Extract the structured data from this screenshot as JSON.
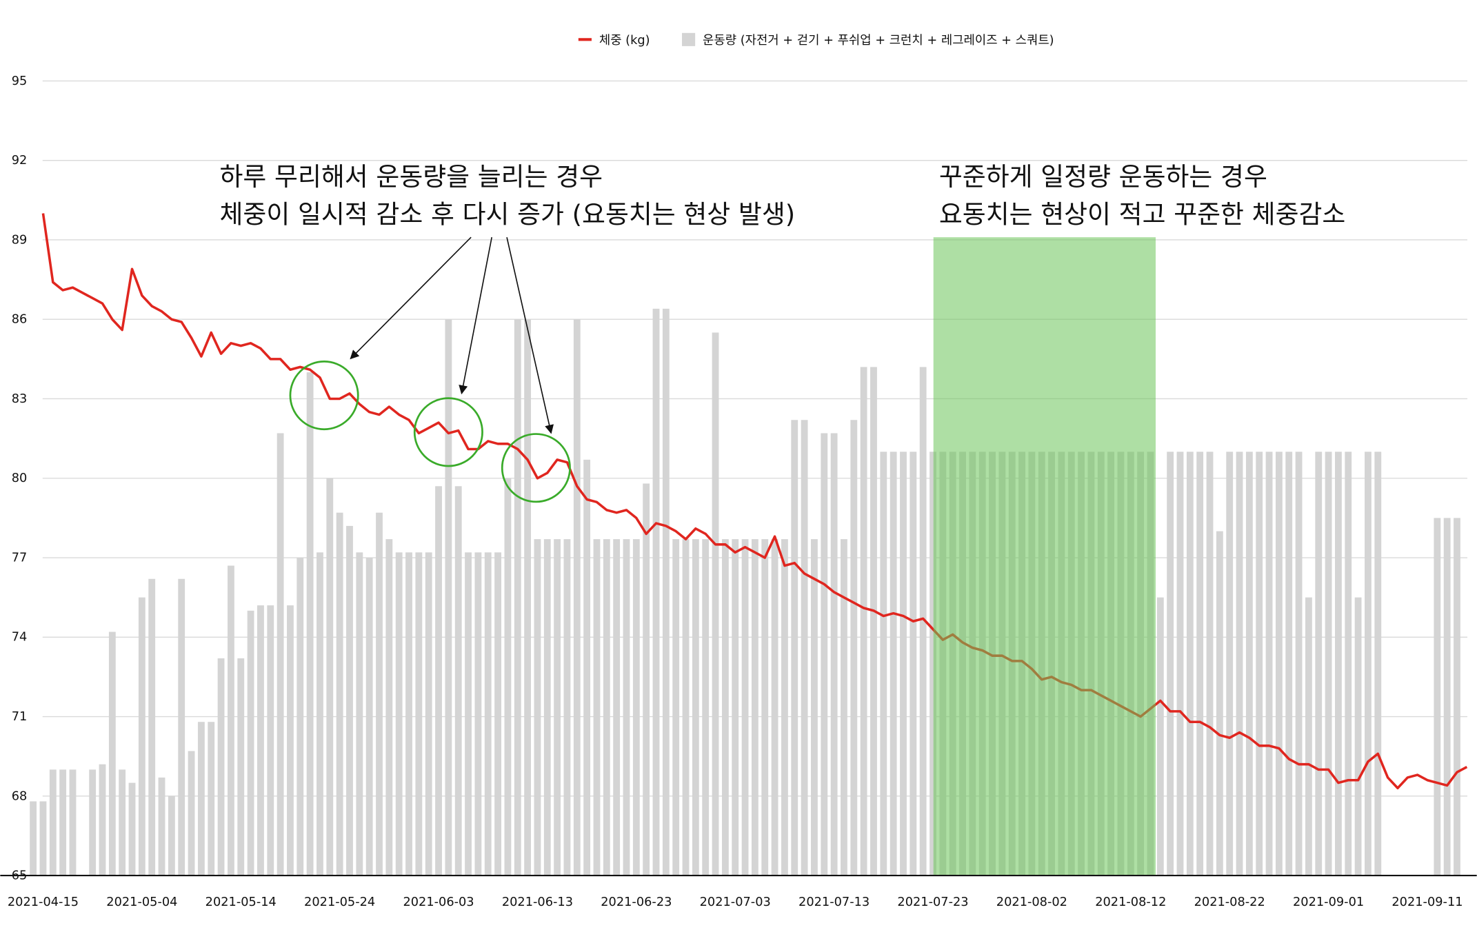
{
  "chart_data": {
    "type": "combo",
    "annotations": [
      [
        "하루 무리해서 운동량을 늘리는 경우",
        "체중이 일시적 감소 후 다시 증가 (요동치는 현상 발생)"
      ],
      [
        "꾸준하게 일정량 운동하는 경우",
        "요동치는 현상이 적고 꾸준한 체중감소"
      ]
    ],
    "categories": [
      null,
      "2021-04-15",
      null,
      null,
      null,
      null,
      null,
      null,
      null,
      null,
      null,
      "2021-05-04",
      null,
      null,
      null,
      null,
      null,
      null,
      null,
      null,
      null,
      "2021-05-14",
      null,
      null,
      null,
      null,
      null,
      null,
      null,
      null,
      null,
      "2021-05-24",
      null,
      null,
      null,
      null,
      null,
      null,
      null,
      null,
      null,
      "2021-06-03",
      null,
      null,
      null,
      null,
      null,
      null,
      null,
      null,
      null,
      "2021-06-13",
      null,
      null,
      null,
      null,
      null,
      null,
      null,
      null,
      null,
      "2021-06-23",
      null,
      null,
      null,
      null,
      null,
      null,
      null,
      null,
      null,
      "2021-07-03",
      null,
      null,
      null,
      null,
      null,
      null,
      null,
      null,
      null,
      "2021-07-13",
      null,
      null,
      null,
      null,
      null,
      null,
      null,
      null,
      null,
      "2021-07-23",
      null,
      null,
      null,
      null,
      null,
      null,
      null,
      null,
      null,
      "2021-08-02",
      null,
      null,
      null,
      null,
      null,
      null,
      null,
      null,
      null,
      "2021-08-12",
      null,
      null,
      null,
      null,
      null,
      null,
      null,
      null,
      null,
      "2021-08-22",
      null,
      null,
      null,
      null,
      null,
      null,
      null,
      null,
      null,
      "2021-09-01",
      null,
      null,
      null,
      null,
      null,
      null,
      null,
      null,
      null,
      "2021-09-11",
      null,
      null,
      null,
      null
    ],
    "series": [
      {
        "name": "운동량 (자전거 + 걷기 + 푸쉬업 + 크런치 + 레그레이즈 + 스쿼트)",
        "type": "bar",
        "color": "#d4d4d4",
        "values": [
          67.8,
          67.8,
          69,
          69,
          69,
          null,
          69,
          69.2,
          74.2,
          69,
          68.5,
          75.5,
          76.2,
          68.7,
          68,
          76.2,
          69.7,
          70.8,
          70.8,
          73.2,
          76.7,
          73.2,
          75,
          75.2,
          75.2,
          81.7,
          75.2,
          77,
          84,
          77.2,
          80,
          78.7,
          78.2,
          77.2,
          77,
          78.7,
          77.7,
          77.2,
          77.2,
          77.2,
          77.2,
          79.7,
          86,
          79.7,
          77.2,
          77.2,
          77.2,
          77.2,
          80,
          86,
          86,
          77.7,
          77.7,
          77.7,
          77.7,
          86,
          80.7,
          77.7,
          77.7,
          77.7,
          77.7,
          77.7,
          79.8,
          86.4,
          86.4,
          77.7,
          77.7,
          77.7,
          77.7,
          85.5,
          77.7,
          77.7,
          77.7,
          77.7,
          77.7,
          77.7,
          77.7,
          82.2,
          82.2,
          77.7,
          81.7,
          81.7,
          77.7,
          82.2,
          84.2,
          84.2,
          81,
          81,
          81,
          81,
          84.2,
          81,
          81,
          81,
          81,
          81,
          81,
          81,
          81,
          81,
          81,
          81,
          81,
          81,
          81,
          81,
          81,
          81,
          81,
          81,
          81,
          81,
          81,
          81,
          75.5,
          81,
          81,
          81,
          81,
          81,
          78,
          81,
          81,
          81,
          81,
          81,
          81,
          81,
          81,
          75.5,
          81,
          81,
          81,
          81,
          75.5,
          81,
          81,
          null,
          null,
          null,
          null,
          null,
          78.5,
          78.5,
          78.5,
          null
        ]
      },
      {
        "name": "체중 (kg)",
        "type": "line",
        "color": "#e0261f",
        "values": [
          null,
          90,
          87.4,
          87.1,
          87.2,
          87,
          86.8,
          86.6,
          86,
          85.6,
          87.9,
          86.9,
          86.5,
          86.3,
          86,
          85.9,
          85.3,
          84.6,
          85.5,
          84.7,
          85.1,
          85,
          85.1,
          84.9,
          84.5,
          84.5,
          84.1,
          84.2,
          84.1,
          83.8,
          83,
          83,
          83.2,
          82.8,
          82.5,
          82.4,
          82.7,
          82.4,
          82.2,
          81.7,
          81.9,
          82.1,
          81.7,
          81.8,
          81.1,
          81.1,
          81.4,
          81.3,
          81.3,
          81.1,
          80.7,
          80,
          80.2,
          80.7,
          80.6,
          79.7,
          79.2,
          79.1,
          78.8,
          78.7,
          78.8,
          78.5,
          77.9,
          78.3,
          78.2,
          78,
          77.7,
          78.1,
          77.9,
          77.5,
          77.5,
          77.2,
          77.4,
          77.2,
          77,
          77.8,
          76.7,
          76.8,
          76.4,
          76.2,
          76,
          75.7,
          75.5,
          75.3,
          75.1,
          75,
          74.8,
          74.9,
          74.8,
          74.6,
          74.7,
          74.3,
          73.9,
          74.1,
          73.8,
          73.6,
          73.5,
          73.3,
          73.3,
          73.1,
          73.1,
          72.8,
          72.4,
          72.5,
          72.3,
          72.2,
          72,
          72,
          71.8,
          71.6,
          71.4,
          71.2,
          71,
          71.3,
          71.6,
          71.2,
          71.2,
          70.8,
          70.8,
          70.6,
          70.3,
          70.2,
          70.4,
          70.2,
          69.9,
          69.9,
          69.8,
          69.4,
          69.2,
          69.2,
          69,
          69,
          68.5,
          68.6,
          68.6,
          69.3,
          69.6,
          68.7,
          68.3,
          68.7,
          68.8,
          68.6,
          68.5,
          68.4,
          68.9,
          69.1
        ]
      }
    ],
    "ylim": [
      65,
      95
    ],
    "yticks": [
      65,
      68,
      71,
      74,
      77,
      80,
      83,
      86,
      89,
      92,
      95
    ],
    "grid": true,
    "legend": "top"
  }
}
